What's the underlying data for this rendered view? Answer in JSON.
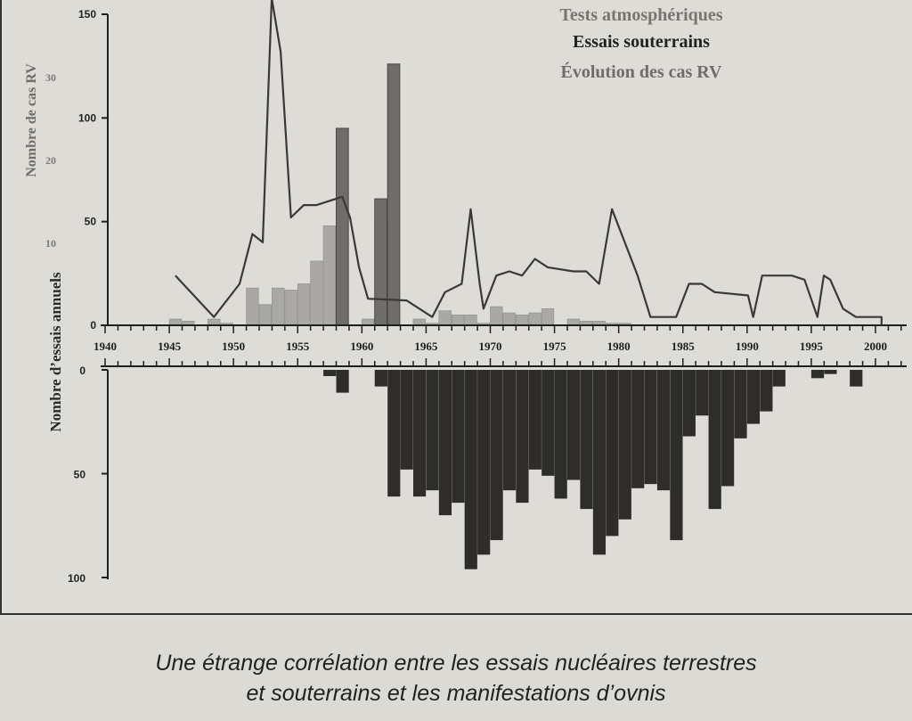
{
  "caption": {
    "line1": "Une étrange corrélation entre les essais nucléaires terrestres",
    "line2": "et souterrains et les manifestations d’ovnis"
  },
  "chart_data": {
    "type": "bar",
    "legend": {
      "atmospheric": "Tests atmosphériques",
      "underground": "Essais souterrains",
      "rv": "Évolution des cas RV"
    },
    "axes": {
      "ylabel_tests": "Nombre d’essais annuels",
      "ylabel_rv": "Nombre de cas RV",
      "upper_ticks": [
        0,
        50,
        100,
        150
      ],
      "rv_ticks": [
        10,
        20,
        30
      ],
      "lower_ticks": [
        0,
        50,
        100
      ],
      "x_ticks": [
        1940,
        1945,
        1950,
        1955,
        1960,
        1965,
        1970,
        1975,
        1980,
        1985,
        1990,
        1995,
        2000
      ],
      "xlim": [
        1940,
        2002
      ],
      "upper_ylim": [
        0,
        150
      ],
      "lower_ylim": [
        0,
        100
      ]
    },
    "atmospheric_tests": [
      {
        "x": 1945,
        "y": 3
      },
      {
        "x": 1946,
        "y": 2
      },
      {
        "x": 1948,
        "y": 3
      },
      {
        "x": 1949,
        "y": 1
      },
      {
        "x": 1951,
        "y": 18
      },
      {
        "x": 1952,
        "y": 10
      },
      {
        "x": 1953,
        "y": 18
      },
      {
        "x": 1954,
        "y": 17
      },
      {
        "x": 1955,
        "y": 20
      },
      {
        "x": 1956,
        "y": 31
      },
      {
        "x": 1957,
        "y": 48
      },
      {
        "x": 1958,
        "y": 49
      },
      {
        "x": 1960,
        "y": 3
      },
      {
        "x": 1961,
        "y": 49
      },
      {
        "x": 1962,
        "y": 10
      },
      {
        "x": 1964,
        "y": 3
      },
      {
        "x": 1965,
        "y": 1
      },
      {
        "x": 1966,
        "y": 7
      },
      {
        "x": 1967,
        "y": 5
      },
      {
        "x": 1968,
        "y": 5
      },
      {
        "x": 1969,
        "y": 1
      },
      {
        "x": 1970,
        "y": 9
      },
      {
        "x": 1971,
        "y": 6
      },
      {
        "x": 1972,
        "y": 5
      },
      {
        "x": 1973,
        "y": 6
      },
      {
        "x": 1974,
        "y": 8
      },
      {
        "x": 1976,
        "y": 3
      },
      {
        "x": 1977,
        "y": 2
      },
      {
        "x": 1978,
        "y": 2
      },
      {
        "x": 1979,
        "y": 1
      },
      {
        "x": 1980,
        "y": 1
      }
    ],
    "dark_upper_bars": [
      {
        "x": 1958,
        "y": 95
      },
      {
        "x": 1961,
        "y": 61
      },
      {
        "x": 1962,
        "y": 126
      }
    ],
    "underground_tests": [
      {
        "x": 1957,
        "y": 3
      },
      {
        "x": 1958,
        "y": 11
      },
      {
        "x": 1961,
        "y": 8
      },
      {
        "x": 1962,
        "y": 61
      },
      {
        "x": 1963,
        "y": 48
      },
      {
        "x": 1964,
        "y": 61
      },
      {
        "x": 1965,
        "y": 58
      },
      {
        "x": 1966,
        "y": 70
      },
      {
        "x": 1967,
        "y": 64
      },
      {
        "x": 1968,
        "y": 96
      },
      {
        "x": 1969,
        "y": 89
      },
      {
        "x": 1970,
        "y": 82
      },
      {
        "x": 1971,
        "y": 58
      },
      {
        "x": 1972,
        "y": 64
      },
      {
        "x": 1973,
        "y": 48
      },
      {
        "x": 1974,
        "y": 51
      },
      {
        "x": 1975,
        "y": 62
      },
      {
        "x": 1976,
        "y": 53
      },
      {
        "x": 1977,
        "y": 67
      },
      {
        "x": 1978,
        "y": 89
      },
      {
        "x": 1979,
        "y": 80
      },
      {
        "x": 1980,
        "y": 72
      },
      {
        "x": 1981,
        "y": 57
      },
      {
        "x": 1982,
        "y": 55
      },
      {
        "x": 1983,
        "y": 58
      },
      {
        "x": 1984,
        "y": 82
      },
      {
        "x": 1985,
        "y": 32
      },
      {
        "x": 1986,
        "y": 22
      },
      {
        "x": 1987,
        "y": 67
      },
      {
        "x": 1988,
        "y": 56
      },
      {
        "x": 1989,
        "y": 33
      },
      {
        "x": 1990,
        "y": 26
      },
      {
        "x": 1991,
        "y": 20
      },
      {
        "x": 1992,
        "y": 8
      },
      {
        "x": 1995,
        "y": 4
      },
      {
        "x": 1996,
        "y": 2
      },
      {
        "x": 1998,
        "y": 8
      }
    ],
    "rv_cases_line": [
      {
        "x": 1945,
        "y": 6
      },
      {
        "x": 1948,
        "y": 1
      },
      {
        "x": 1949,
        "y": 3
      },
      {
        "x": 1950,
        "y": 5
      },
      {
        "x": 1951,
        "y": 11
      },
      {
        "x": 1951.8,
        "y": 10
      },
      {
        "x": 1952.5,
        "y": 42
      },
      {
        "x": 1953.2,
        "y": 33
      },
      {
        "x": 1954,
        "y": 13
      },
      {
        "x": 1955,
        "y": 14.5
      },
      {
        "x": 1956,
        "y": 14.5
      },
      {
        "x": 1957,
        "y": 15
      },
      {
        "x": 1958,
        "y": 15.5
      },
      {
        "x": 1958.6,
        "y": 13
      },
      {
        "x": 1959.3,
        "y": 7
      },
      {
        "x": 1960,
        "y": 3.2
      },
      {
        "x": 1963,
        "y": 3
      },
      {
        "x": 1965,
        "y": 1
      },
      {
        "x": 1966,
        "y": 4
      },
      {
        "x": 1967.3,
        "y": 5
      },
      {
        "x": 1968,
        "y": 14
      },
      {
        "x": 1968.7,
        "y": 5
      },
      {
        "x": 1969,
        "y": 2
      },
      {
        "x": 1970,
        "y": 6
      },
      {
        "x": 1971,
        "y": 6.5
      },
      {
        "x": 1972,
        "y": 6
      },
      {
        "x": 1973,
        "y": 8
      },
      {
        "x": 1974,
        "y": 7
      },
      {
        "x": 1976,
        "y": 6.5
      },
      {
        "x": 1977,
        "y": 6.5
      },
      {
        "x": 1978,
        "y": 5
      },
      {
        "x": 1979,
        "y": 14
      },
      {
        "x": 1980,
        "y": 10
      },
      {
        "x": 1981,
        "y": 6
      },
      {
        "x": 1982,
        "y": 1
      },
      {
        "x": 1984,
        "y": 1
      },
      {
        "x": 1985,
        "y": 5
      },
      {
        "x": 1986,
        "y": 5
      },
      {
        "x": 1987,
        "y": 4
      },
      {
        "x": 1989.6,
        "y": 3.6
      },
      {
        "x": 1990,
        "y": 1
      },
      {
        "x": 1990.7,
        "y": 6
      },
      {
        "x": 1993,
        "y": 6
      },
      {
        "x": 1994,
        "y": 5.5
      },
      {
        "x": 1995,
        "y": 1
      },
      {
        "x": 1995.5,
        "y": 6
      },
      {
        "x": 1996,
        "y": 5.5
      },
      {
        "x": 1997,
        "y": 2
      },
      {
        "x": 1998,
        "y": 1
      },
      {
        "x": 1999,
        "y": 1
      },
      {
        "x": 2000,
        "y": 1
      },
      {
        "x": 2000,
        "y": 0
      }
    ],
    "colors": {
      "atmospheric": "#a9a8a4",
      "dark_upper": "#6f6d69",
      "underground": "#2e2d2b",
      "rv_line": "#3a3937",
      "axis": "#1f1f1f",
      "rv_label": "#7b7a75"
    }
  }
}
